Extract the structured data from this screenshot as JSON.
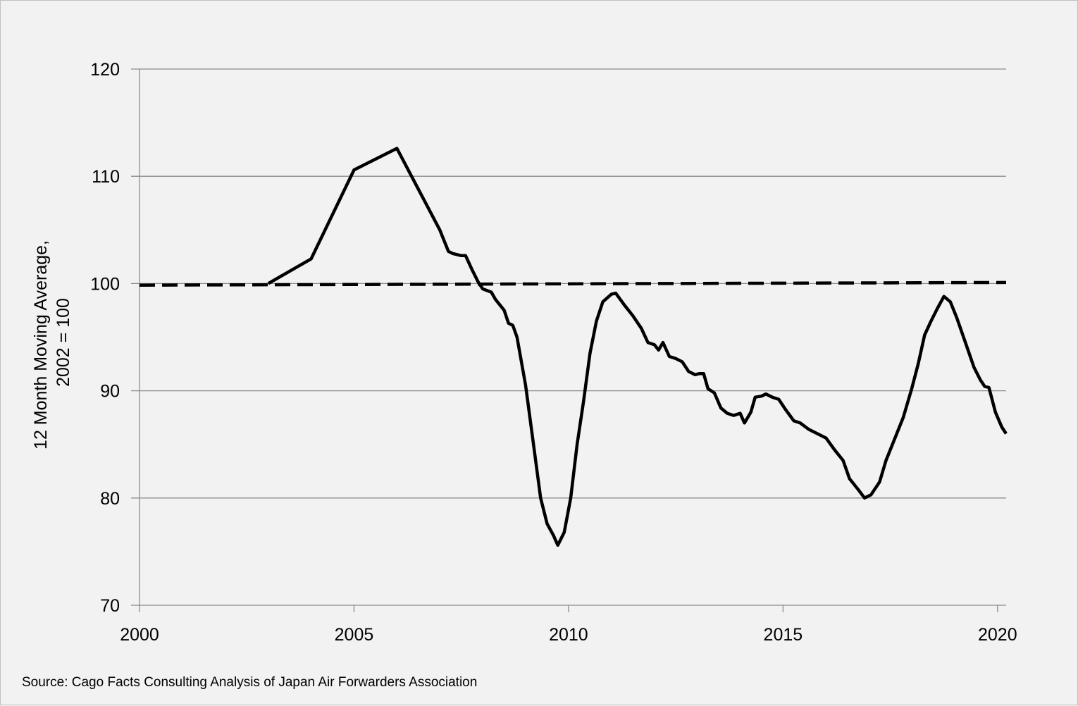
{
  "chart_data": {
    "type": "line",
    "title": "",
    "xlabel": "",
    "ylabel_lines": [
      "12 Month Moving Average,",
      "2002 = 100"
    ],
    "xlim": [
      2000,
      2020.2
    ],
    "ylim": [
      70,
      120
    ],
    "x_ticks": [
      2000,
      2005,
      2010,
      2015,
      2020
    ],
    "y_ticks": [
      70,
      80,
      90,
      100,
      110,
      120
    ],
    "grid": "horizontal",
    "legend": "none",
    "series": [
      {
        "style": "solid",
        "color": "#000000",
        "points": [
          [
            2003.0,
            100.0
          ],
          [
            2004.0,
            102.3
          ],
          [
            2005.0,
            110.6
          ],
          [
            2006.0,
            112.6
          ],
          [
            2007.0,
            105.0
          ],
          [
            2007.2,
            103.0
          ],
          [
            2007.3,
            102.8
          ],
          [
            2007.5,
            102.6
          ],
          [
            2007.6,
            102.6
          ],
          [
            2007.75,
            101.3
          ],
          [
            2007.9,
            100.1
          ],
          [
            2008.0,
            99.5
          ],
          [
            2008.2,
            99.2
          ],
          [
            2008.3,
            98.5
          ],
          [
            2008.5,
            97.5
          ],
          [
            2008.6,
            96.3
          ],
          [
            2008.7,
            96.1
          ],
          [
            2008.8,
            95.0
          ],
          [
            2009.0,
            90.5
          ],
          [
            2009.2,
            84.5
          ],
          [
            2009.35,
            80.0
          ],
          [
            2009.5,
            77.6
          ],
          [
            2009.65,
            76.5
          ],
          [
            2009.75,
            75.6
          ],
          [
            2009.9,
            76.8
          ],
          [
            2010.05,
            80.0
          ],
          [
            2010.2,
            85.0
          ],
          [
            2010.35,
            89.0
          ],
          [
            2010.5,
            93.5
          ],
          [
            2010.65,
            96.5
          ],
          [
            2010.8,
            98.3
          ],
          [
            2011.0,
            99.0
          ],
          [
            2011.1,
            99.1
          ],
          [
            2011.3,
            98.0
          ],
          [
            2011.5,
            97.0
          ],
          [
            2011.7,
            95.8
          ],
          [
            2011.85,
            94.5
          ],
          [
            2012.0,
            94.3
          ],
          [
            2012.1,
            93.8
          ],
          [
            2012.2,
            94.5
          ],
          [
            2012.35,
            93.2
          ],
          [
            2012.5,
            93.0
          ],
          [
            2012.65,
            92.7
          ],
          [
            2012.8,
            91.8
          ],
          [
            2012.95,
            91.5
          ],
          [
            2013.05,
            91.6
          ],
          [
            2013.15,
            91.6
          ],
          [
            2013.25,
            90.2
          ],
          [
            2013.4,
            89.8
          ],
          [
            2013.55,
            88.4
          ],
          [
            2013.7,
            87.9
          ],
          [
            2013.85,
            87.7
          ],
          [
            2014.0,
            87.9
          ],
          [
            2014.1,
            87.0
          ],
          [
            2014.25,
            88.0
          ],
          [
            2014.35,
            89.4
          ],
          [
            2014.5,
            89.5
          ],
          [
            2014.6,
            89.7
          ],
          [
            2014.75,
            89.4
          ],
          [
            2014.9,
            89.2
          ],
          [
            2015.05,
            88.3
          ],
          [
            2015.25,
            87.2
          ],
          [
            2015.4,
            87.0
          ],
          [
            2015.6,
            86.4
          ],
          [
            2015.8,
            86.0
          ],
          [
            2016.0,
            85.6
          ],
          [
            2016.2,
            84.5
          ],
          [
            2016.4,
            83.5
          ],
          [
            2016.55,
            81.8
          ],
          [
            2016.75,
            80.8
          ],
          [
            2016.9,
            80.0
          ],
          [
            2017.05,
            80.3
          ],
          [
            2017.25,
            81.5
          ],
          [
            2017.4,
            83.5
          ],
          [
            2017.6,
            85.5
          ],
          [
            2017.8,
            87.5
          ],
          [
            2018.0,
            90.2
          ],
          [
            2018.15,
            92.5
          ],
          [
            2018.3,
            95.2
          ],
          [
            2018.45,
            96.5
          ],
          [
            2018.6,
            97.7
          ],
          [
            2018.75,
            98.8
          ],
          [
            2018.9,
            98.3
          ],
          [
            2019.05,
            96.8
          ],
          [
            2019.25,
            94.5
          ],
          [
            2019.45,
            92.2
          ],
          [
            2019.6,
            91.0
          ],
          [
            2019.7,
            90.4
          ],
          [
            2019.8,
            90.3
          ],
          [
            2019.95,
            88.0
          ],
          [
            2020.1,
            86.6
          ],
          [
            2020.2,
            86.0
          ]
        ]
      },
      {
        "style": "dashed",
        "color": "#000000",
        "points": [
          [
            2000.0,
            99.85
          ],
          [
            2020.2,
            100.1
          ]
        ]
      }
    ],
    "source_note": "Source: Cago Facts Consulting Analysis of Japan Air Forwarders Association"
  }
}
